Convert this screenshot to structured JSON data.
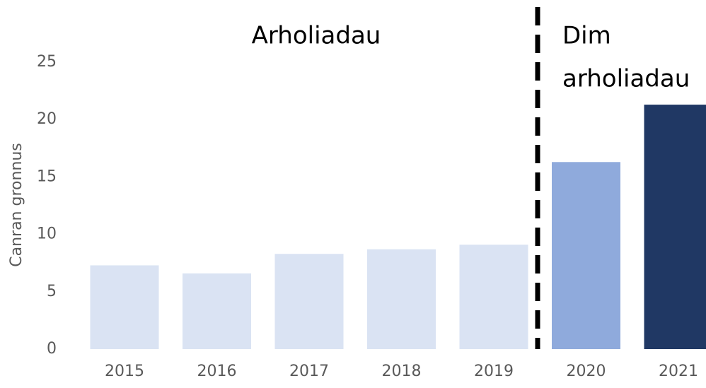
{
  "chart_data": {
    "type": "bar",
    "y_label": "Canran gronnus",
    "annotations": [
      {
        "lines": [
          "Arholiadau"
        ]
      },
      {
        "lines": [
          "Dim",
          "arholiadau"
        ]
      }
    ],
    "categories": [
      "2015",
      "2016",
      "2017",
      "2018",
      "2019",
      "2020",
      "2021"
    ],
    "values": [
      7.3,
      6.6,
      8.3,
      8.7,
      9.1,
      16.3,
      21.3
    ],
    "colors": [
      "#dae3f3",
      "#dae3f3",
      "#dae3f3",
      "#dae3f3",
      "#dae3f3",
      "#8faadc",
      "#203864"
    ],
    "ylim": [
      0,
      25
    ],
    "yticks": [
      0,
      5,
      10,
      15,
      20,
      25
    ],
    "grid": false
  }
}
